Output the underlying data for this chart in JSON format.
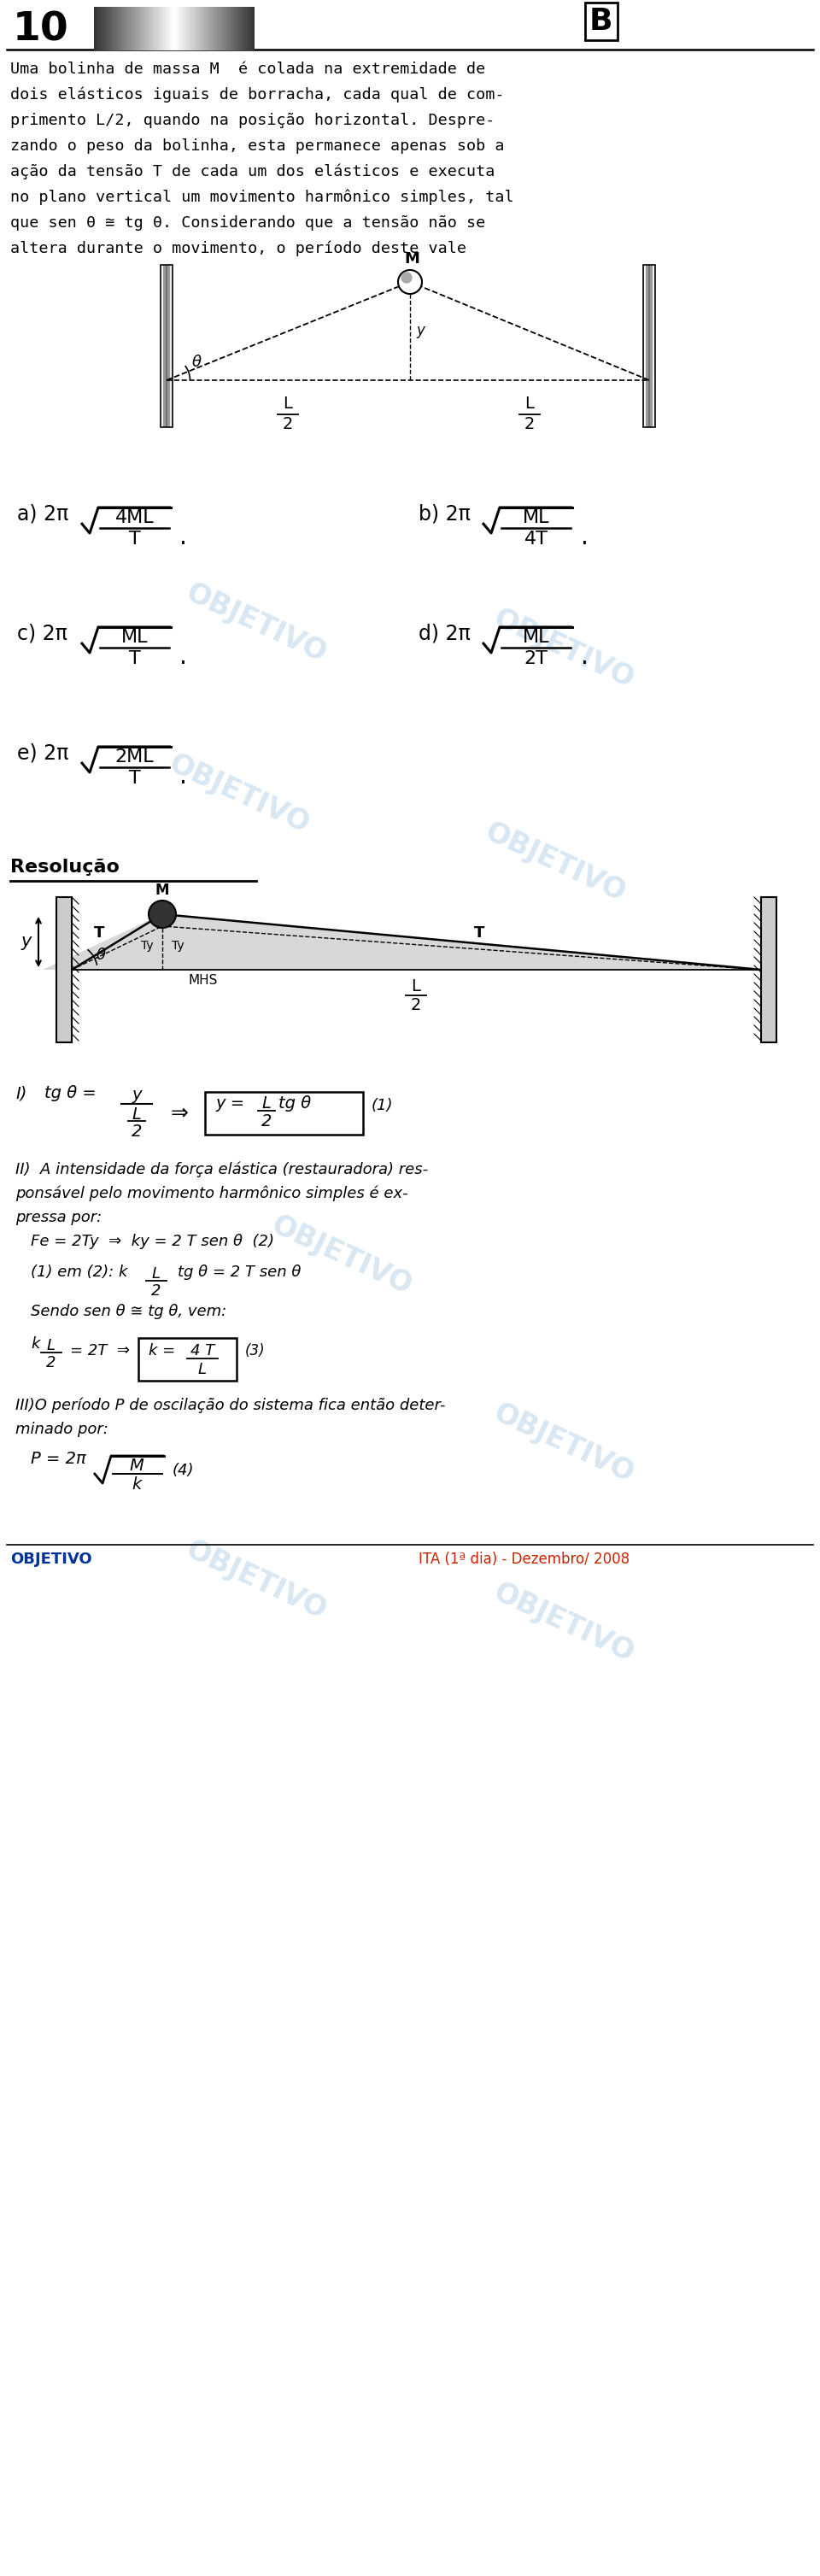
{
  "title_number": "10",
  "title_letter": "B",
  "problem_text": [
    "Uma bolinha de massa M  é colada na extremidade de",
    "dois elásticos iguais de borracha, cada qual de com-",
    "primento L/2, quando na posição horizontal. Despre-",
    "zando o peso da bolinha, esta permanece apenas sob a",
    "ação da tensão T de cada um dos elásticos e executa",
    "no plano vertical um movimento harmônico simples, tal",
    "que sen θ ≅ tg θ. Considerando que a tensão não se",
    "altera durante o movimento, o período deste vale"
  ],
  "background_color": "#ffffff",
  "text_color": "#000000",
  "watermark_color": "#b8d4e8",
  "wall_color": "#d0d0d0",
  "wall_gradient": [
    "#ffffff",
    "#888888",
    "#cccccc",
    "#888888",
    "#ffffff"
  ],
  "resolucao_label": "Resolução",
  "footer_left": "OBJETIVO",
  "footer_right": "ITA (1ª dia) - Dezembro/ 2008",
  "footer_left_color": "#003399",
  "footer_right_color": "#cc2200"
}
